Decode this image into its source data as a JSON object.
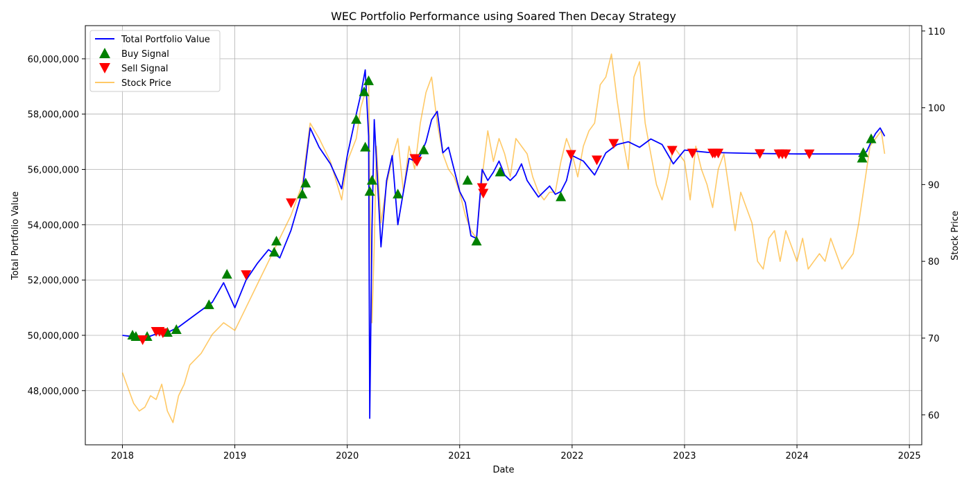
{
  "chart_data": {
    "type": "line",
    "title": "WEC Portfolio Performance using Soared Then Decay Strategy",
    "xlabel": "Date",
    "ylabel": "Total Portfolio Value",
    "y2label": "Stock Price",
    "x_ticks": [
      "2018",
      "2019",
      "2020",
      "2021",
      "2022",
      "2023",
      "2024",
      "2025"
    ],
    "y_ticks": [
      "48,000,000",
      "50,000,000",
      "52,000,000",
      "54,000,000",
      "56,000,000",
      "58,000,000",
      "60,000,000"
    ],
    "y_tick_values": [
      48000000,
      50000000,
      52000000,
      54000000,
      56000000,
      58000000,
      60000000
    ],
    "y2_ticks": [
      "60",
      "70",
      "80",
      "90",
      "100",
      "110"
    ],
    "y2_tick_values": [
      60,
      70,
      80,
      90,
      100,
      110
    ],
    "xlim": [
      2017.67,
      2025.11
    ],
    "ylim": [
      46040000,
      61200000
    ],
    "y2lim": [
      56.1,
      110.7
    ],
    "grid": true,
    "legend_position": "top-left",
    "legend": [
      "Total Portfolio Value",
      "Buy Signal",
      "Sell Signal",
      "Stock Price"
    ],
    "colors": {
      "portfolio": "#0000ff",
      "buy": "#008000",
      "sell": "#ff0000",
      "stock": "#ffa500"
    },
    "series": [
      {
        "name": "Total Portfolio Value",
        "axis": "left",
        "x": [
          2018.0,
          2018.1,
          2018.2,
          2018.3,
          2018.4,
          2018.5,
          2018.6,
          2018.7,
          2018.8,
          2018.9,
          2019.0,
          2019.1,
          2019.2,
          2019.3,
          2019.4,
          2019.5,
          2019.6,
          2019.67,
          2019.75,
          2019.85,
          2019.95,
          2020.0,
          2020.08,
          2020.12,
          2020.16,
          2020.19,
          2020.2,
          2020.22,
          2020.24,
          2020.26,
          2020.3,
          2020.35,
          2020.4,
          2020.45,
          2020.5,
          2020.55,
          2020.6,
          2020.65,
          2020.7,
          2020.75,
          2020.8,
          2020.85,
          2020.9,
          2020.95,
          2021.0,
          2021.05,
          2021.1,
          2021.15,
          2021.2,
          2021.25,
          2021.3,
          2021.35,
          2021.4,
          2021.45,
          2021.5,
          2021.55,
          2021.6,
          2021.65,
          2021.7,
          2021.75,
          2021.8,
          2021.85,
          2021.9,
          2021.95,
          2022.0,
          2022.1,
          2022.2,
          2022.3,
          2022.4,
          2022.5,
          2022.6,
          2022.7,
          2022.8,
          2022.9,
          2023.0,
          2023.2,
          2023.4,
          2023.6,
          2023.8,
          2024.0,
          2024.2,
          2024.4,
          2024.58,
          2024.62,
          2024.66,
          2024.7,
          2024.74,
          2024.78
        ],
        "values": [
          50000000,
          49950000,
          49900000,
          50050000,
          50100000,
          50300000,
          50600000,
          50900000,
          51200000,
          51900000,
          51000000,
          52000000,
          52600000,
          53100000,
          52800000,
          53800000,
          55200000,
          57500000,
          56800000,
          56200000,
          55300000,
          56500000,
          58000000,
          58700000,
          59600000,
          57200000,
          47000000,
          53800000,
          57800000,
          56300000,
          53200000,
          55600000,
          56500000,
          54000000,
          55200000,
          56400000,
          56300000,
          56500000,
          57000000,
          57800000,
          58100000,
          56600000,
          56800000,
          56000000,
          55200000,
          54800000,
          53600000,
          53500000,
          56000000,
          55600000,
          55900000,
          56300000,
          55800000,
          55600000,
          55800000,
          56200000,
          55600000,
          55300000,
          55000000,
          55200000,
          55400000,
          55100000,
          55200000,
          55600000,
          56500000,
          56300000,
          55800000,
          56600000,
          56900000,
          57000000,
          56800000,
          57100000,
          56900000,
          56200000,
          56700000,
          56620000,
          56600000,
          56580000,
          56570000,
          56560000,
          56560000,
          56560000,
          56560000,
          56650000,
          57000000,
          57300000,
          57500000,
          57200000
        ]
      },
      {
        "name": "Stock Price",
        "axis": "right",
        "x": [
          2018.0,
          2018.05,
          2018.1,
          2018.15,
          2018.2,
          2018.25,
          2018.3,
          2018.35,
          2018.4,
          2018.45,
          2018.5,
          2018.55,
          2018.6,
          2018.7,
          2018.8,
          2018.9,
          2019.0,
          2019.05,
          2019.1,
          2019.2,
          2019.3,
          2019.4,
          2019.5,
          2019.6,
          2019.67,
          2019.75,
          2019.85,
          2019.95,
          2020.0,
          2020.08,
          2020.12,
          2020.16,
          2020.19,
          2020.2,
          2020.22,
          2020.24,
          2020.26,
          2020.3,
          2020.35,
          2020.4,
          2020.45,
          2020.5,
          2020.55,
          2020.6,
          2020.65,
          2020.7,
          2020.75,
          2020.8,
          2020.85,
          2020.9,
          2020.95,
          2021.0,
          2021.05,
          2021.1,
          2021.15,
          2021.2,
          2021.25,
          2021.3,
          2021.35,
          2021.4,
          2021.45,
          2021.5,
          2021.55,
          2021.6,
          2021.65,
          2021.7,
          2021.75,
          2021.8,
          2021.85,
          2021.9,
          2021.95,
          2022.0,
          2022.05,
          2022.1,
          2022.15,
          2022.2,
          2022.25,
          2022.3,
          2022.35,
          2022.4,
          2022.45,
          2022.5,
          2022.55,
          2022.6,
          2022.65,
          2022.7,
          2022.75,
          2022.8,
          2022.85,
          2022.9,
          2022.95,
          2023.0,
          2023.05,
          2023.1,
          2023.15,
          2023.2,
          2023.25,
          2023.3,
          2023.35,
          2023.4,
          2023.45,
          2023.5,
          2023.55,
          2023.6,
          2023.65,
          2023.7,
          2023.75,
          2023.8,
          2023.85,
          2023.9,
          2023.95,
          2024.0,
          2024.05,
          2024.1,
          2024.15,
          2024.2,
          2024.25,
          2024.3,
          2024.35,
          2024.4,
          2024.45,
          2024.5,
          2024.55,
          2024.6,
          2024.65,
          2024.7,
          2024.75,
          2024.78
        ],
        "values": [
          65.5,
          63.5,
          61.5,
          60.5,
          61.0,
          62.5,
          62.0,
          64.0,
          60.5,
          59.0,
          62.5,
          64.0,
          66.5,
          68.0,
          70.5,
          72.0,
          71.0,
          72.5,
          74.0,
          77.0,
          80.0,
          83.0,
          86.0,
          90.0,
          98.0,
          96.0,
          93.0,
          88.0,
          93.0,
          96.0,
          100.0,
          102.0,
          104.0,
          90.0,
          72.0,
          82.0,
          95.0,
          85.0,
          90.0,
          93.5,
          96.0,
          89.0,
          95.0,
          92.0,
          98.0,
          102.0,
          104.0,
          98.0,
          94.0,
          92.0,
          91.0,
          89.0,
          86.0,
          84.0,
          83.0,
          91.0,
          97.0,
          93.0,
          96.0,
          94.0,
          91.0,
          96.0,
          95.0,
          94.0,
          91.0,
          89.0,
          88.0,
          89.0,
          89.0,
          93.0,
          96.0,
          94.0,
          91.0,
          95.0,
          97.0,
          98.0,
          103.0,
          104.0,
          107.0,
          101.0,
          96.0,
          92.0,
          104.0,
          106.0,
          98.0,
          94.0,
          90.0,
          88.0,
          91.0,
          95.0,
          94.0,
          93.0,
          88.0,
          95.0,
          92.0,
          90.0,
          87.0,
          92.0,
          94.0,
          89.0,
          84.0,
          89.0,
          87.0,
          85.0,
          80.0,
          79.0,
          83.0,
          84.0,
          80.0,
          84.0,
          82.0,
          80.0,
          83.0,
          79.0,
          80.0,
          81.0,
          80.0,
          83.0,
          81.0,
          79.0,
          80.0,
          81.0,
          85.0,
          90.0,
          95.0,
          96.0,
          97.0,
          94.0
        ]
      }
    ],
    "buy_signals": {
      "x": [
        2018.09,
        2018.12,
        2018.22,
        2018.4,
        2018.48,
        2018.77,
        2018.93,
        2019.35,
        2019.37,
        2019.6,
        2019.63,
        2020.08,
        2020.15,
        2020.16,
        2020.19,
        2020.2,
        2020.22,
        2020.45,
        2020.68,
        2021.07,
        2021.15,
        2021.36,
        2021.9,
        2024.58,
        2024.59,
        2024.66
      ],
      "values": [
        50000000,
        49950000,
        49950000,
        50100000,
        50200000,
        51100000,
        52200000,
        53000000,
        53400000,
        55100000,
        55500000,
        57800000,
        58800000,
        56800000,
        59200000,
        55200000,
        55600000,
        55100000,
        56700000,
        55600000,
        53400000,
        55900000,
        55000000,
        56400000,
        56600000,
        57100000
      ]
    },
    "sell_signals": {
      "x": [
        2018.18,
        2018.3,
        2018.33,
        2018.36,
        2019.1,
        2019.5,
        2020.6,
        2020.62,
        2021.2,
        2021.21,
        2021.99,
        2022.22,
        2022.37,
        2022.89,
        2023.07,
        2023.25,
        2023.27,
        2023.3,
        2023.67,
        2023.84,
        2023.87,
        2023.9,
        2024.11
      ],
      "values": [
        49850000,
        50150000,
        50150000,
        50100000,
        52200000,
        54800000,
        56400000,
        56300000,
        55350000,
        55150000,
        56550000,
        56350000,
        56950000,
        56700000,
        56600000,
        56600000,
        56600000,
        56600000,
        56580000,
        56570000,
        56570000,
        56570000,
        56570000
      ]
    }
  }
}
